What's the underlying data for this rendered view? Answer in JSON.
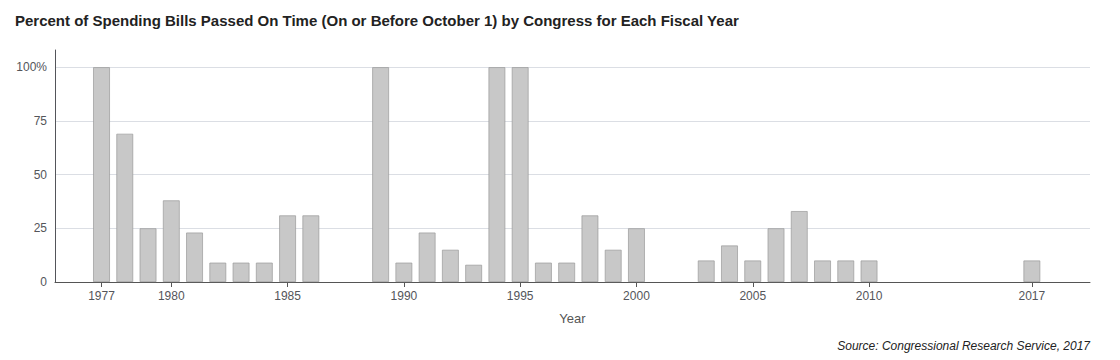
{
  "chart_data": {
    "type": "bar",
    "title": "Percent of Spending Bills Passed On Time (On or Before October 1) by Congress for Each Fiscal Year",
    "xlabel": "Year",
    "annotation": "Source: Congressional Research Service, 2017",
    "x": [
      1977,
      1978,
      1979,
      1980,
      1981,
      1982,
      1983,
      1984,
      1985,
      1986,
      1989,
      1990,
      1991,
      1992,
      1993,
      1994,
      1995,
      1996,
      1997,
      1998,
      1999,
      2000,
      2003,
      2004,
      2005,
      2006,
      2007,
      2008,
      2009,
      2010,
      2017
    ],
    "values": [
      100,
      69,
      25,
      38,
      23,
      9,
      9,
      9,
      31,
      31,
      100,
      9,
      23,
      15,
      8,
      100,
      100,
      9,
      9,
      31,
      15,
      25,
      10,
      17,
      10,
      25,
      33,
      10,
      10,
      10,
      10
    ],
    "color": "#c8c8c8",
    "xlim": [
      1975.0,
      2019.5
    ],
    "xticks": [
      1977,
      1980,
      1985,
      1990,
      1995,
      2000,
      2005,
      2010,
      2017
    ],
    "ylim": [
      0,
      108
    ],
    "yticks": [
      0,
      25,
      50,
      75,
      {
        "value": 100,
        "label": "100%"
      }
    ],
    "grid": true
  }
}
